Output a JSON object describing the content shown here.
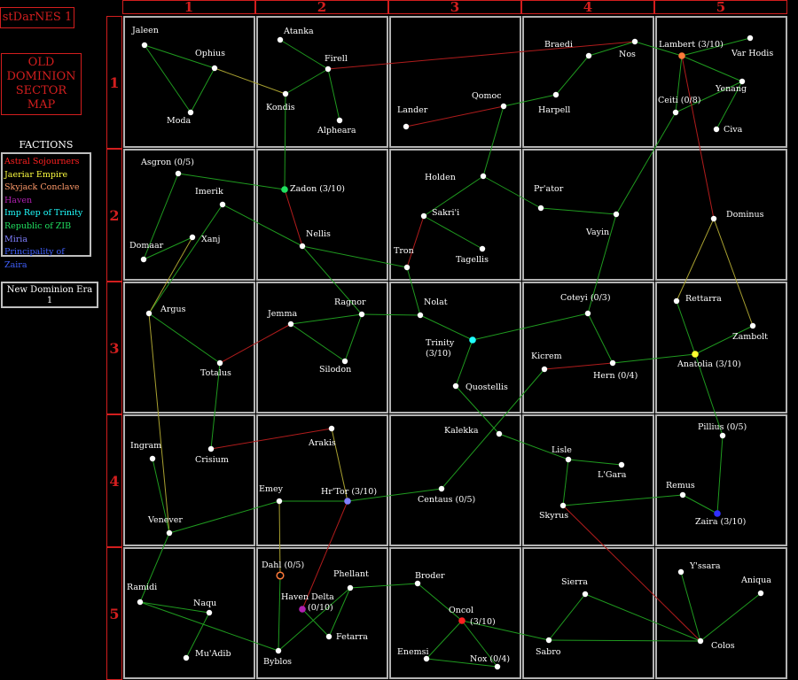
{
  "game_title": "stDarNES 1",
  "map_title": "OLD\nDOMINION\nSECTOR\nMAP",
  "legend": {
    "title": "FACTIONS",
    "factions": [
      {
        "name": "Astral Sojourners",
        "color": "#ff2020"
      },
      {
        "name": "Jaeriar Empire",
        "color": "#ffff40"
      },
      {
        "name": "Skyjack Conclave",
        "color": "#ff9a6a"
      },
      {
        "name": "Haven",
        "color": "#b020b0"
      },
      {
        "name": "Imp Rep of Trinity",
        "color": "#20ffff"
      },
      {
        "name": "Republic of ZIB",
        "color": "#20e060"
      },
      {
        "name": "Miria",
        "color": "#8080ff"
      },
      {
        "name": "Principality of Zaira",
        "color": "#4060ff"
      }
    ]
  },
  "era": {
    "label": "New Dominion Era",
    "value": "1"
  },
  "columns": [
    "1",
    "2",
    "3",
    "4",
    "5"
  ],
  "rows": [
    "1",
    "2",
    "3",
    "4",
    "5"
  ],
  "systems": [
    {
      "id": "jaleen",
      "name": "Jaleen"
    },
    {
      "id": "ophius",
      "name": "Ophius"
    },
    {
      "id": "moda",
      "name": "Moda"
    },
    {
      "id": "atanka",
      "name": "Atanka"
    },
    {
      "id": "firell",
      "name": "Firell"
    },
    {
      "id": "kondis",
      "name": "Kondis"
    },
    {
      "id": "alpheara",
      "name": "Alpheara"
    },
    {
      "id": "lander",
      "name": "Lander"
    },
    {
      "id": "qomoc",
      "name": "Qomoc"
    },
    {
      "id": "braedi",
      "name": "Braedi"
    },
    {
      "id": "nos",
      "name": "Nos"
    },
    {
      "id": "harpell",
      "name": "Harpell"
    },
    {
      "id": "lambert",
      "name": "Lambert (3/10)"
    },
    {
      "id": "varhodis",
      "name": "Var Hodis"
    },
    {
      "id": "yenang",
      "name": "Yenang"
    },
    {
      "id": "ceiti",
      "name": "Ceiti (0/8)"
    },
    {
      "id": "civa",
      "name": "Civa"
    },
    {
      "id": "asgron",
      "name": "Asgron (0/5)"
    },
    {
      "id": "imerik",
      "name": "Imerik"
    },
    {
      "id": "xanj",
      "name": "Xanj"
    },
    {
      "id": "domaar",
      "name": "Domaar"
    },
    {
      "id": "zadon",
      "name": "Zadon (3/10)"
    },
    {
      "id": "nellis",
      "name": "Nellis"
    },
    {
      "id": "holden",
      "name": "Holden"
    },
    {
      "id": "sakrii",
      "name": "Sakri'i"
    },
    {
      "id": "tron",
      "name": "Tron"
    },
    {
      "id": "tagellis",
      "name": "Tagellis"
    },
    {
      "id": "prator",
      "name": "Pr'ator"
    },
    {
      "id": "vayin",
      "name": "Vayin"
    },
    {
      "id": "dominus",
      "name": "Dominus"
    },
    {
      "id": "argus",
      "name": "Argus"
    },
    {
      "id": "totalus",
      "name": "Totalus"
    },
    {
      "id": "jemma",
      "name": "Jemma"
    },
    {
      "id": "ragnor",
      "name": "Ragnor"
    },
    {
      "id": "silodon",
      "name": "Silodon"
    },
    {
      "id": "nolat",
      "name": "Nolat"
    },
    {
      "id": "trinity",
      "name": "Trinity"
    },
    {
      "id": "quostellis",
      "name": "Quostellis"
    },
    {
      "id": "coteyi",
      "name": "Coteyi (0/3)"
    },
    {
      "id": "kicrem",
      "name": "Kicrem"
    },
    {
      "id": "hern",
      "name": "Hern (0/4)"
    },
    {
      "id": "rettarra",
      "name": "Rettarra"
    },
    {
      "id": "zambolt",
      "name": "Zambolt"
    },
    {
      "id": "anatolia",
      "name": "Anatolia (3/10)"
    },
    {
      "id": "ingram",
      "name": "Ingram"
    },
    {
      "id": "crisium",
      "name": "Crisium"
    },
    {
      "id": "venever",
      "name": "Venever"
    },
    {
      "id": "arakis",
      "name": "Arakis"
    },
    {
      "id": "emey",
      "name": "Emey"
    },
    {
      "id": "hrtor",
      "name": "Hr'Tor (3/10)"
    },
    {
      "id": "kalekka",
      "name": "Kalekka"
    },
    {
      "id": "centaus",
      "name": "Centaus (0/5)"
    },
    {
      "id": "lisle",
      "name": "Lisle"
    },
    {
      "id": "lgara",
      "name": "L'Gara"
    },
    {
      "id": "skyrus",
      "name": "Skyrus"
    },
    {
      "id": "pillius",
      "name": "Pillius (0/5)"
    },
    {
      "id": "remus",
      "name": "Remus"
    },
    {
      "id": "zaira",
      "name": "Zaira (3/10)"
    },
    {
      "id": "ramidi",
      "name": "Ramidi"
    },
    {
      "id": "naqu",
      "name": "Naqu"
    },
    {
      "id": "muadib",
      "name": "Mu'Adib"
    },
    {
      "id": "dahl",
      "name": "Dahl (0/5)"
    },
    {
      "id": "havendelta",
      "name": "Haven Delta"
    },
    {
      "id": "havendelta_count",
      "name": "(0/10)"
    },
    {
      "id": "phellant",
      "name": "Phellant"
    },
    {
      "id": "fetarra",
      "name": "Fetarra"
    },
    {
      "id": "byblos",
      "name": "Byblos"
    },
    {
      "id": "broder",
      "name": "Broder"
    },
    {
      "id": "oncol",
      "name": "Oncol"
    },
    {
      "id": "oncol_count",
      "name": "(3/10)"
    },
    {
      "id": "enemsi",
      "name": "Enemsi"
    },
    {
      "id": "nox",
      "name": "Nox (0/4)"
    },
    {
      "id": "sierra",
      "name": "Sierra"
    },
    {
      "id": "sabro",
      "name": "Sabro"
    },
    {
      "id": "yssara",
      "name": "Y'ssara"
    },
    {
      "id": "aniqua",
      "name": "Aniqua"
    },
    {
      "id": "colos",
      "name": "Colos"
    },
    {
      "id": "trinity_count",
      "name": "(3/10)"
    }
  ],
  "colors": {
    "grid_border": "#b3b3b3",
    "header": "#d21e1e",
    "lane_default": "#1f9a1f",
    "lane_red": "#b01c1c",
    "lane_yellow": "#a8a030",
    "lane_orange": "#c87830"
  }
}
